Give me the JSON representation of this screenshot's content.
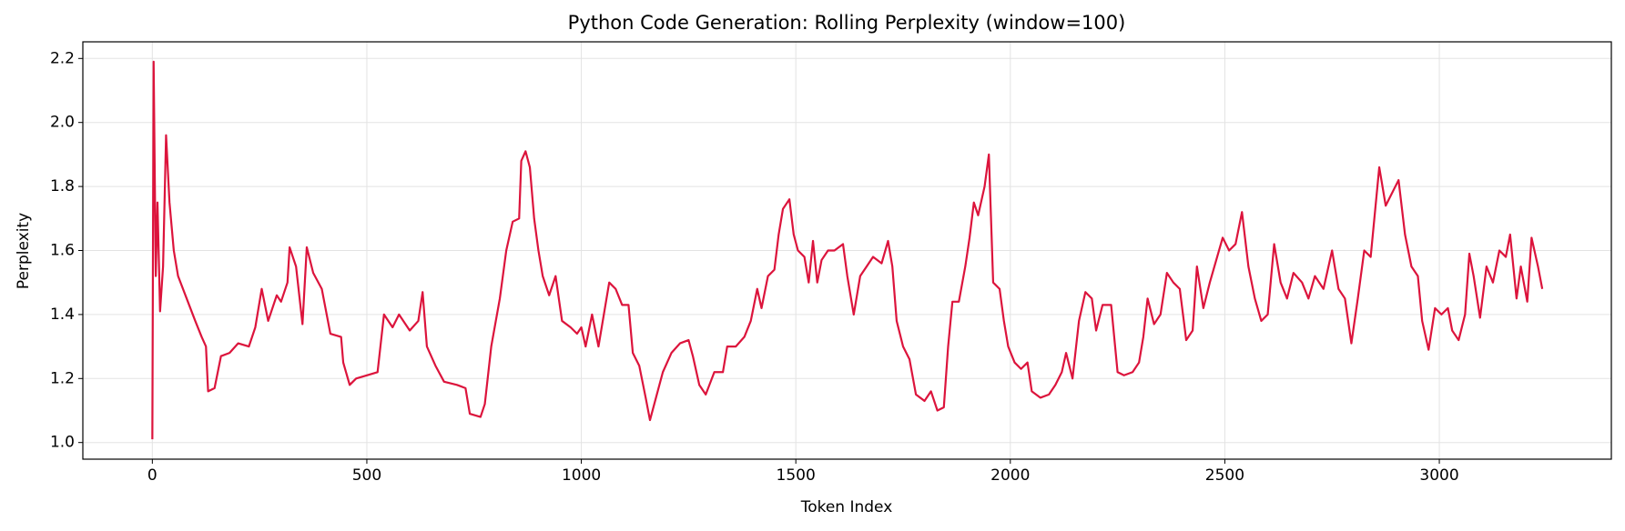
{
  "chart_data": {
    "type": "line",
    "title": "Python Code Generation: Rolling Perplexity (window=100)",
    "x_label": "Token Index",
    "y_label": "Perplexity",
    "color": "#dc143c",
    "grid": true,
    "xlim": [
      -162,
      3401
    ],
    "xticks": [
      0,
      500,
      1000,
      1500,
      2000,
      2500,
      3000
    ],
    "ylim": [
      0.948,
      2.252
    ],
    "yticks": [
      {
        "value": 1,
        "label": "1.0"
      },
      1.2,
      1.4,
      1.6,
      1.8,
      {
        "value": 2,
        "label": "2.0"
      },
      2.2
    ],
    "x": [
      0,
      3,
      8,
      12,
      18,
      25,
      32,
      40,
      50,
      60,
      80,
      100,
      115,
      125,
      130,
      145,
      160,
      180,
      200,
      225,
      240,
      255,
      270,
      290,
      300,
      315,
      320,
      335,
      350,
      360,
      375,
      395,
      415,
      440,
      445,
      460,
      475,
      500,
      525,
      540,
      560,
      575,
      600,
      620,
      630,
      640,
      660,
      680,
      710,
      730,
      740,
      765,
      775,
      790,
      810,
      825,
      840,
      855,
      860,
      870,
      880,
      890,
      900,
      910,
      925,
      940,
      955,
      975,
      990,
      1000,
      1010,
      1025,
      1040,
      1055,
      1065,
      1080,
      1095,
      1110,
      1120,
      1135,
      1150,
      1160,
      1170,
      1190,
      1210,
      1230,
      1250,
      1260,
      1275,
      1290,
      1310,
      1330,
      1340,
      1360,
      1380,
      1395,
      1410,
      1420,
      1435,
      1450,
      1460,
      1470,
      1485,
      1495,
      1505,
      1520,
      1530,
      1540,
      1550,
      1560,
      1575,
      1590,
      1610,
      1620,
      1635,
      1650,
      1665,
      1680,
      1700,
      1715,
      1725,
      1735,
      1750,
      1765,
      1780,
      1800,
      1815,
      1830,
      1845,
      1855,
      1865,
      1880,
      1895,
      1905,
      1915,
      1925,
      1940,
      1950,
      1960,
      1975,
      1985,
      1995,
      2010,
      2025,
      2040,
      2050,
      2070,
      2090,
      2105,
      2120,
      2130,
      2145,
      2160,
      2175,
      2190,
      2200,
      2215,
      2235,
      2250,
      2265,
      2285,
      2300,
      2310,
      2320,
      2335,
      2350,
      2365,
      2380,
      2395,
      2410,
      2425,
      2435,
      2450,
      2465,
      2480,
      2495,
      2510,
      2525,
      2540,
      2555,
      2570,
      2585,
      2600,
      2615,
      2630,
      2645,
      2660,
      2680,
      2695,
      2710,
      2730,
      2750,
      2765,
      2780,
      2795,
      2810,
      2825,
      2840,
      2860,
      2875,
      2890,
      2905,
      2920,
      2935,
      2950,
      2960,
      2975,
      2990,
      3005,
      3020,
      3030,
      3045,
      3060,
      3070,
      3080,
      3095,
      3110,
      3125,
      3140,
      3155,
      3165,
      3180,
      3190,
      3205,
      3215,
      3230,
      3240
    ],
    "values": [
      1.01,
      2.19,
      1.52,
      1.75,
      1.41,
      1.55,
      1.96,
      1.75,
      1.6,
      1.52,
      1.45,
      1.38,
      1.33,
      1.3,
      1.16,
      1.17,
      1.27,
      1.28,
      1.31,
      1.3,
      1.36,
      1.48,
      1.38,
      1.46,
      1.44,
      1.5,
      1.61,
      1.55,
      1.37,
      1.61,
      1.53,
      1.48,
      1.34,
      1.33,
      1.25,
      1.18,
      1.2,
      1.21,
      1.22,
      1.4,
      1.36,
      1.4,
      1.35,
      1.38,
      1.47,
      1.3,
      1.24,
      1.19,
      1.18,
      1.17,
      1.09,
      1.08,
      1.12,
      1.3,
      1.45,
      1.6,
      1.69,
      1.7,
      1.88,
      1.91,
      1.86,
      1.7,
      1.6,
      1.52,
      1.46,
      1.52,
      1.38,
      1.36,
      1.34,
      1.36,
      1.3,
      1.4,
      1.3,
      1.42,
      1.5,
      1.48,
      1.43,
      1.43,
      1.28,
      1.24,
      1.14,
      1.07,
      1.12,
      1.22,
      1.28,
      1.31,
      1.32,
      1.27,
      1.18,
      1.15,
      1.22,
      1.22,
      1.3,
      1.3,
      1.33,
      1.38,
      1.48,
      1.42,
      1.52,
      1.54,
      1.65,
      1.73,
      1.76,
      1.65,
      1.6,
      1.58,
      1.5,
      1.63,
      1.5,
      1.57,
      1.6,
      1.6,
      1.62,
      1.52,
      1.4,
      1.52,
      1.55,
      1.58,
      1.56,
      1.63,
      1.55,
      1.38,
      1.3,
      1.26,
      1.15,
      1.13,
      1.16,
      1.1,
      1.11,
      1.3,
      1.44,
      1.44,
      1.55,
      1.64,
      1.75,
      1.71,
      1.8,
      1.9,
      1.5,
      1.48,
      1.38,
      1.3,
      1.25,
      1.23,
      1.25,
      1.16,
      1.14,
      1.15,
      1.18,
      1.22,
      1.28,
      1.2,
      1.38,
      1.47,
      1.45,
      1.35,
      1.43,
      1.43,
      1.22,
      1.21,
      1.22,
      1.25,
      1.33,
      1.45,
      1.37,
      1.4,
      1.53,
      1.5,
      1.48,
      1.32,
      1.35,
      1.55,
      1.42,
      1.5,
      1.57,
      1.64,
      1.6,
      1.62,
      1.72,
      1.55,
      1.45,
      1.38,
      1.4,
      1.62,
      1.5,
      1.45,
      1.53,
      1.5,
      1.45,
      1.52,
      1.48,
      1.6,
      1.48,
      1.45,
      1.31,
      1.45,
      1.6,
      1.58,
      1.86,
      1.74,
      1.78,
      1.82,
      1.65,
      1.55,
      1.52,
      1.38,
      1.29,
      1.42,
      1.4,
      1.42,
      1.35,
      1.32,
      1.4,
      1.59,
      1.52,
      1.39,
      1.55,
      1.5,
      1.6,
      1.58,
      1.65,
      1.45,
      1.55,
      1.44,
      1.64,
      1.55,
      1.48
    ]
  }
}
